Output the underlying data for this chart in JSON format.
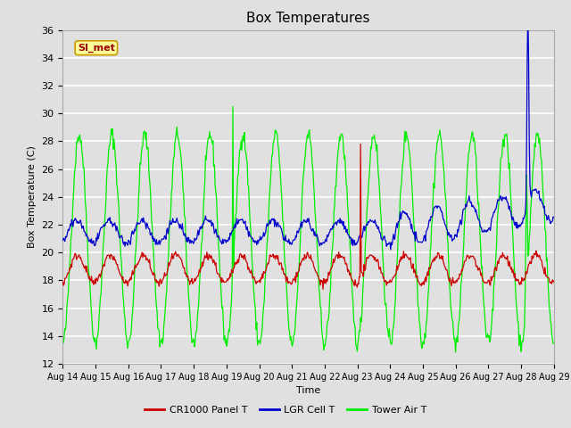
{
  "title": "Box Temperatures",
  "xlabel": "Time",
  "ylabel": "Box Temperature (C)",
  "ylim": [
    12,
    36
  ],
  "yticks": [
    12,
    14,
    16,
    18,
    20,
    22,
    24,
    26,
    28,
    30,
    32,
    34,
    36
  ],
  "bg_color": "#e0e0e0",
  "plot_bg_color": "#e0e0e0",
  "grid_color": "white",
  "line_colors": {
    "cr1000": "#cc0000",
    "lgr": "#0000cc",
    "tower": "#00ee00"
  },
  "legend_labels": [
    "CR1000 Panel T",
    "LGR Cell T",
    "Tower Air T"
  ],
  "watermark_text": "SI_met",
  "watermark_bg": "#ffff99",
  "watermark_border": "#cc9900",
  "watermark_text_color": "#990000",
  "x_start": 14,
  "x_end": 29,
  "xtick_labels": [
    "Aug 14",
    "Aug 15",
    "Aug 16",
    "Aug 17",
    "Aug 18",
    "Aug 19",
    "Aug 20",
    "Aug 21",
    "Aug 22",
    "Aug 23",
    "Aug 24",
    "Aug 25",
    "Aug 26",
    "Aug 27",
    "Aug 28",
    "Aug 29"
  ],
  "xtick_positions": [
    14,
    15,
    16,
    17,
    18,
    19,
    20,
    21,
    22,
    23,
    24,
    25,
    26,
    27,
    28,
    29
  ]
}
